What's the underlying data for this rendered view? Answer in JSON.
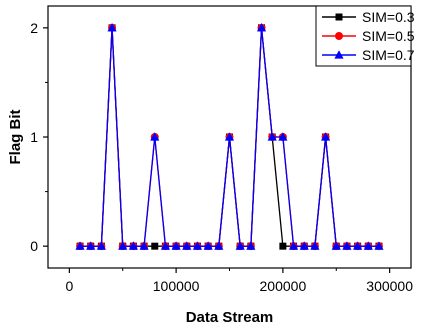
{
  "chart_data": {
    "type": "line",
    "xlabel": "Data Stream",
    "ylabel": "Flag Bit",
    "xlim": [
      -20000,
      320000
    ],
    "ylim": [
      -0.2,
      2.2
    ],
    "x_ticks": [
      0,
      100000,
      200000,
      300000
    ],
    "x_tick_labels": [
      "0",
      "100000",
      "200000",
      "300000"
    ],
    "y_ticks": [
      0,
      1,
      2
    ],
    "y_tick_labels": [
      "0",
      "1",
      "2"
    ],
    "grid": false,
    "legend_position": "top-right",
    "x": [
      10000,
      20000,
      30000,
      40000,
      50000,
      60000,
      70000,
      80000,
      90000,
      100000,
      110000,
      120000,
      130000,
      140000,
      150000,
      160000,
      170000,
      180000,
      190000,
      200000,
      210000,
      220000,
      230000,
      240000,
      250000,
      260000,
      270000,
      280000,
      290000
    ],
    "series": [
      {
        "name": "SIM=0.3",
        "color": "#000000",
        "marker": "square",
        "values": [
          0,
          0,
          0,
          2,
          0,
          0,
          0,
          0,
          0,
          0,
          0,
          0,
          0,
          0,
          1,
          0,
          0,
          2,
          1,
          0,
          0,
          0,
          0,
          1,
          0,
          0,
          0,
          0,
          0
        ]
      },
      {
        "name": "SIM=0.5",
        "color": "#ff0000",
        "marker": "circle",
        "values": [
          0,
          0,
          0,
          2,
          0,
          0,
          0,
          1,
          0,
          0,
          0,
          0,
          0,
          0,
          1,
          0,
          0,
          2,
          1,
          1,
          0,
          0,
          0,
          1,
          0,
          0,
          0,
          0,
          0
        ]
      },
      {
        "name": "SIM=0.7",
        "color": "#0000ff",
        "marker": "triangle",
        "values": [
          0,
          0,
          0,
          2,
          0,
          0,
          0,
          1,
          0,
          0,
          0,
          0,
          0,
          0,
          1,
          0,
          0,
          2,
          1,
          1,
          0,
          0,
          0,
          1,
          0,
          0,
          0,
          0,
          0
        ]
      }
    ]
  }
}
